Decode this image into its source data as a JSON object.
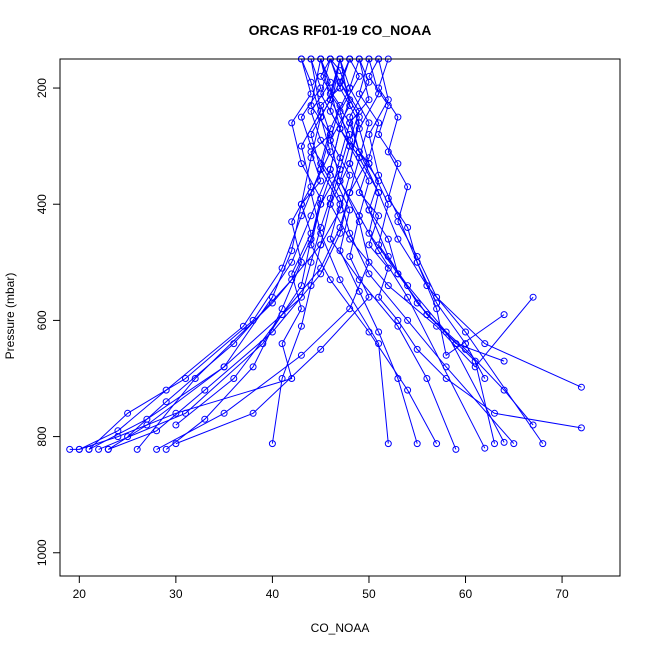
{
  "chart_data": {
    "type": "scatter",
    "title": "ORCAS RF01-19 CO_NOAA",
    "xlabel": "CO_NOAA",
    "ylabel": "Pressure (mbar)",
    "xlim": [
      18,
      76
    ],
    "ylim_display": [
      1040,
      150
    ],
    "y_reversed": true,
    "x_ticks": [
      20,
      30,
      40,
      50,
      60,
      70
    ],
    "y_ticks": [
      200,
      400,
      600,
      800,
      1000
    ],
    "series_color": "#0000ff",
    "marker": "open-circle",
    "connected": true,
    "series": [
      {
        "x": [
          46,
          47,
          45,
          46,
          44,
          45,
          43,
          44,
          42,
          43,
          41,
          42,
          30,
          24,
          20,
          19
        ],
        "y": [
          150,
          200,
          230,
          280,
          310,
          360,
          400,
          450,
          520,
          580,
          640,
          700,
          760,
          800,
          822,
          822
        ]
      },
      {
        "x": [
          48,
          47,
          49,
          48,
          50,
          49,
          51,
          50,
          52,
          51,
          53,
          55,
          58,
          63,
          72
        ],
        "y": [
          150,
          190,
          240,
          290,
          330,
          380,
          420,
          470,
          510,
          560,
          600,
          650,
          700,
          760,
          785
        ]
      },
      {
        "x": [
          47,
          46,
          48,
          47,
          46,
          45,
          44,
          43,
          35,
          27,
          21
        ],
        "y": [
          150,
          210,
          260,
          320,
          390,
          440,
          500,
          560,
          680,
          770,
          822
        ]
      },
      {
        "x": [
          49,
          50,
          48,
          49,
          51,
          50,
          52,
          53,
          56,
          60,
          64,
          67
        ],
        "y": [
          150,
          220,
          260,
          310,
          360,
          410,
          460,
          520,
          590,
          650,
          720,
          780
        ]
      },
      {
        "x": [
          44,
          45,
          43,
          44,
          46,
          45,
          44,
          42,
          36,
          29,
          25
        ],
        "y": [
          150,
          200,
          250,
          300,
          350,
          400,
          460,
          530,
          640,
          740,
          800
        ]
      },
      {
        "x": [
          51,
          50,
          52,
          51,
          53,
          52,
          54,
          55,
          57,
          60,
          62
        ],
        "y": [
          150,
          180,
          230,
          280,
          330,
          390,
          440,
          500,
          570,
          640,
          700
        ]
      },
      {
        "x": [
          46,
          47,
          48,
          47,
          49,
          48,
          47,
          45,
          40,
          33,
          28,
          23
        ],
        "y": [
          150,
          170,
          220,
          270,
          320,
          380,
          450,
          520,
          620,
          720,
          790,
          822
        ]
      },
      {
        "x": [
          45,
          46,
          44,
          45,
          47,
          46,
          48,
          52,
          57,
          61,
          67
        ],
        "y": [
          150,
          190,
          240,
          290,
          340,
          400,
          460,
          540,
          610,
          680,
          560
        ]
      },
      {
        "x": [
          47,
          48,
          46,
          45,
          47,
          48,
          50,
          54,
          58,
          65
        ],
        "y": [
          150,
          200,
          270,
          330,
          390,
          450,
          520,
          600,
          680,
          812
        ]
      },
      {
        "x": [
          50,
          49,
          51,
          50,
          48,
          47,
          45,
          41,
          36,
          30
        ],
        "y": [
          150,
          210,
          260,
          320,
          380,
          440,
          510,
          590,
          700,
          780
        ]
      },
      {
        "x": [
          45,
          44,
          46,
          45,
          47,
          46,
          49,
          53,
          56,
          59
        ],
        "y": [
          150,
          230,
          280,
          340,
          400,
          460,
          530,
          610,
          700,
          822
        ]
      },
      {
        "x": [
          48,
          49,
          47,
          48,
          50,
          49,
          51,
          54,
          62
        ],
        "y": [
          150,
          180,
          240,
          300,
          360,
          420,
          480,
          560,
          820
        ]
      },
      {
        "x": [
          43,
          44,
          42,
          43,
          45,
          44,
          43,
          39,
          31,
          22
        ],
        "y": [
          150,
          210,
          260,
          330,
          390,
          460,
          540,
          640,
          760,
          822
        ]
      },
      {
        "x": [
          52,
          51,
          53,
          52,
          54,
          53,
          55,
          57,
          62,
          72
        ],
        "y": [
          150,
          200,
          250,
          310,
          370,
          430,
          490,
          560,
          640,
          715
        ]
      },
      {
        "x": [
          47,
          46,
          48,
          47,
          45,
          44,
          46,
          50,
          54,
          57
        ],
        "y": [
          150,
          220,
          280,
          340,
          400,
          470,
          530,
          620,
          720,
          812
        ]
      },
      {
        "x": [
          46,
          45,
          47,
          46,
          48,
          47,
          45,
          40,
          32,
          26
        ],
        "y": [
          150,
          180,
          230,
          290,
          350,
          410,
          470,
          570,
          700,
          822
        ]
      },
      {
        "x": [
          49,
          48,
          50,
          49,
          51,
          50,
          53,
          56,
          61,
          63
        ],
        "y": [
          150,
          200,
          260,
          320,
          380,
          450,
          520,
          590,
          670,
          812
        ]
      },
      {
        "x": [
          44,
          45,
          43,
          44,
          42,
          43,
          41,
          38,
          33,
          29
        ],
        "y": [
          150,
          240,
          300,
          370,
          430,
          500,
          580,
          680,
          770,
          822
        ]
      },
      {
        "x": [
          48,
          47,
          49,
          48,
          50,
          52,
          55,
          59,
          64
        ],
        "y": [
          150,
          190,
          250,
          330,
          410,
          490,
          570,
          640,
          670
        ]
      },
      {
        "x": [
          45,
          46,
          47,
          46,
          44,
          42,
          38,
          31,
          25,
          21
        ],
        "y": [
          150,
          200,
          270,
          340,
          420,
          500,
          600,
          700,
          760,
          822
        ]
      },
      {
        "x": [
          50,
          51,
          49,
          50,
          52,
          51,
          54,
          58,
          64
        ],
        "y": [
          150,
          210,
          270,
          330,
          400,
          470,
          540,
          620,
          810
        ]
      },
      {
        "x": [
          46,
          47,
          45,
          46,
          44,
          45,
          47,
          51,
          52
        ],
        "y": [
          150,
          190,
          250,
          310,
          380,
          450,
          530,
          640,
          812
        ]
      },
      {
        "x": [
          47,
          48,
          46,
          47,
          49,
          48,
          50,
          45,
          38,
          30
        ],
        "y": [
          150,
          230,
          290,
          360,
          420,
          490,
          560,
          650,
          760,
          812
        ]
      },
      {
        "x": [
          43,
          44,
          45,
          44,
          43,
          42,
          40,
          35,
          27,
          23
        ],
        "y": [
          150,
          190,
          250,
          320,
          400,
          480,
          560,
          680,
          780,
          822
        ]
      },
      {
        "x": [
          51,
          52,
          50,
          51,
          53,
          55,
          57,
          58,
          64
        ],
        "y": [
          150,
          220,
          280,
          350,
          420,
          500,
          580,
          660,
          590
        ]
      },
      {
        "x": [
          48,
          47,
          49,
          48,
          46,
          45,
          44,
          43,
          41,
          40
        ],
        "y": [
          150,
          200,
          260,
          330,
          400,
          470,
          540,
          610,
          700,
          812
        ]
      },
      {
        "x": [
          46,
          45,
          47,
          46,
          48,
          47,
          49,
          51,
          53,
          55
        ],
        "y": [
          150,
          210,
          270,
          340,
          410,
          480,
          550,
          620,
          700,
          812
        ]
      },
      {
        "x": [
          45,
          46,
          44,
          45,
          43,
          41,
          37,
          29,
          24,
          20
        ],
        "y": [
          150,
          220,
          280,
          340,
          420,
          510,
          610,
          720,
          790,
          822
        ]
      },
      {
        "x": [
          49,
          50,
          48,
          49,
          51,
          53,
          56,
          60,
          68
        ],
        "y": [
          150,
          190,
          250,
          310,
          380,
          460,
          540,
          620,
          812
        ]
      },
      {
        "x": [
          47,
          46,
          48,
          47,
          49,
          50,
          48,
          43,
          35,
          28
        ],
        "y": [
          150,
          240,
          300,
          360,
          430,
          500,
          580,
          660,
          760,
          822
        ]
      }
    ]
  }
}
